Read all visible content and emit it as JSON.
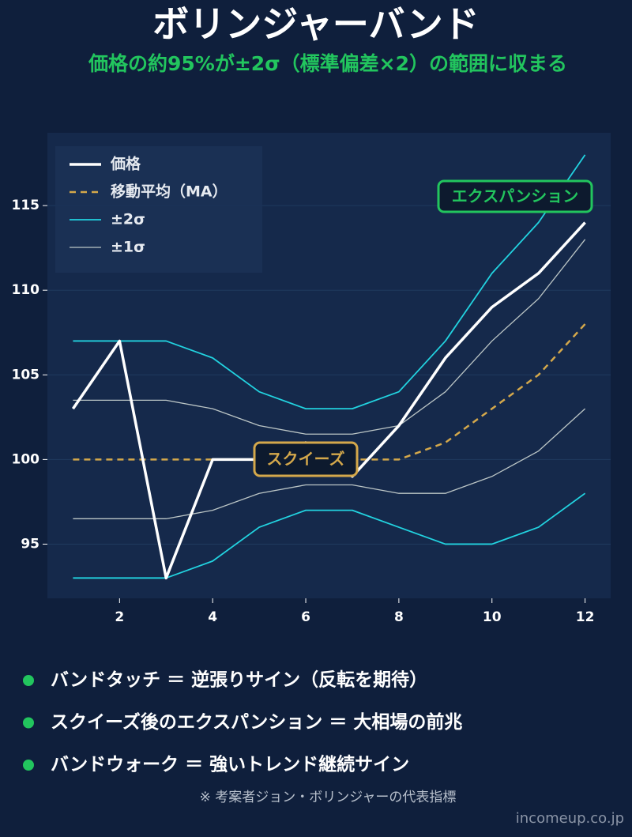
{
  "chart_data": {
    "type": "line",
    "title": "ボリンジャーバンド",
    "subtitle": "価格の約95%が±2σ（標準偏差×2）の範囲に収まる",
    "x": [
      1,
      2,
      3,
      4,
      5,
      6,
      7,
      8,
      9,
      10,
      11,
      12
    ],
    "xlim": [
      0.45,
      12.55
    ],
    "xticks": [
      2,
      4,
      6,
      8,
      10,
      12
    ],
    "ylim": [
      91.8,
      119.3
    ],
    "yticks": [
      95,
      100,
      105,
      110,
      115
    ],
    "grid": true,
    "legend": "upper left",
    "series": [
      {
        "name": "価格",
        "color": "#ffffff",
        "style": "solid",
        "width": 3.5,
        "values": [
          103,
          107,
          93,
          100,
          100,
          101,
          99,
          102,
          106,
          109,
          111,
          114
        ]
      },
      {
        "name": "移動平均（MA）",
        "color": "#d4a84b",
        "style": "dashed",
        "width": 2.5,
        "values": [
          100,
          100,
          100,
          100,
          100,
          100,
          100,
          100,
          101,
          103,
          105,
          108
        ]
      },
      {
        "name": "±2σ",
        "color": "#22d3e0",
        "style": "solid",
        "width": 1.8,
        "upper": [
          107,
          107,
          107,
          106,
          104,
          103,
          103,
          104,
          107,
          111,
          114,
          118
        ],
        "lower": [
          93,
          93,
          93,
          94,
          96,
          97,
          97,
          96,
          95,
          95,
          96,
          98
        ]
      },
      {
        "name": "±1σ",
        "color": "#bcc6c6",
        "style": "solid",
        "width": 1.3,
        "upper": [
          103.5,
          103.5,
          103.5,
          103,
          102,
          101.5,
          101.5,
          102,
          104,
          107,
          109.5,
          113
        ],
        "lower": [
          96.5,
          96.5,
          96.5,
          97,
          98,
          98.5,
          98.5,
          98,
          98,
          99,
          100.5,
          103
        ]
      }
    ],
    "annotations": [
      {
        "text": "エクスパンション",
        "color": "#22c55e"
      },
      {
        "text": "スクイーズ",
        "color": "#d4a84b"
      }
    ]
  },
  "notes": [
    "バンドタッチ ＝ 逆張りサイン（反転を期待）",
    "スクイーズ後のエクスパンション ＝ 大相場の前兆",
    "バンドウォーク ＝ 強いトレンド継続サイン"
  ],
  "footnote": "※ 考案者ジョン・ボリンジャーの代表指標",
  "watermark": "incomeup.co.jp"
}
